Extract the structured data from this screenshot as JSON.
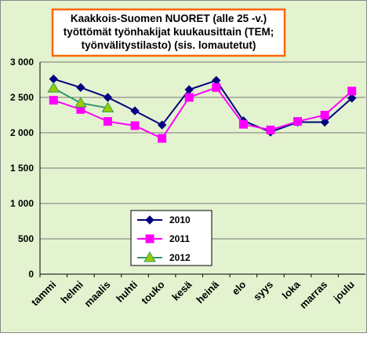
{
  "chart_data": {
    "type": "line",
    "title": [
      "Kaakkois-Suomen  NUORET (alle 25 -v.)",
      "työttömät työnhakijat kuukausittain (TEM;",
      "työnvälitystilasto) (sis. lomautetut)"
    ],
    "categories": [
      "tammi",
      "helmi",
      "maalis",
      "huhti",
      "touko",
      "kesä",
      "heinä",
      "elo",
      "syys",
      "loka",
      "marras",
      "joulu"
    ],
    "series": [
      {
        "name": "2010",
        "color": "#000080",
        "marker": "diamond",
        "values": [
          2760,
          2640,
          2500,
          2310,
          2110,
          2610,
          2740,
          2170,
          2010,
          2150,
          2150,
          2490
        ]
      },
      {
        "name": "2011",
        "color": "#ff00ff",
        "marker": "square",
        "values": [
          2460,
          2330,
          2160,
          2100,
          1920,
          2500,
          2640,
          2120,
          2040,
          2160,
          2250,
          2590
        ]
      },
      {
        "name": "2012",
        "color": "#339966",
        "marker_fill": "#99cc00",
        "marker": "triangle",
        "values": [
          2630,
          2420,
          2350,
          null,
          null,
          null,
          null,
          null,
          null,
          null,
          null,
          null
        ]
      }
    ],
    "ylim": [
      0,
      3000
    ],
    "yticks": [
      0,
      500,
      {
        "value": 1000,
        "label": "1 000"
      },
      {
        "value": 1500,
        "label": "1 500"
      },
      {
        "value": 2000,
        "label": "2 000"
      },
      {
        "value": 2500,
        "label": "2 500"
      },
      {
        "value": 3000,
        "label": "3 000"
      }
    ],
    "grid": true
  }
}
